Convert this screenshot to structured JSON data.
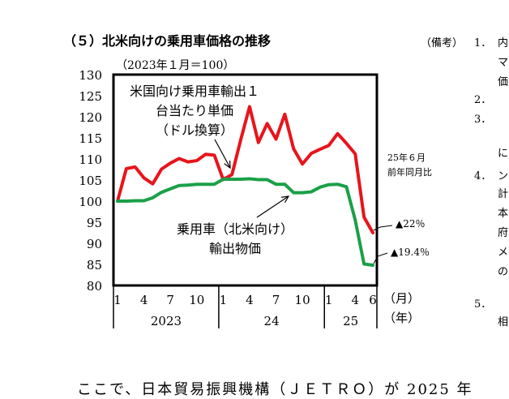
{
  "page": {
    "title": "（５）北米向けの乗用車価格の推移",
    "notes_heading": "（備考）",
    "notes": [
      {
        "num": "1．",
        "text": "内"
      },
      {
        "num": "",
        "text": "マ"
      },
      {
        "num": "",
        "text": "価"
      },
      {
        "num": "2．",
        "text": ""
      },
      {
        "num": "3．",
        "text": ""
      },
      {
        "num": "",
        "text": "に"
      },
      {
        "num": "4．",
        "text": "ン"
      },
      {
        "num": "",
        "text": "計"
      },
      {
        "num": "",
        "text": "本"
      },
      {
        "num": "",
        "text": "府"
      },
      {
        "num": "",
        "text": "メ"
      },
      {
        "num": "",
        "text": "の"
      },
      {
        "num": "5．",
        "text": ""
      },
      {
        "num": "",
        "text": "相"
      }
    ],
    "footer_text": "ここで、日本貿易振興機構（ＪＥＴＲＯ）が 2025 年"
  },
  "chart_data": {
    "type": "line",
    "unit_note": "（2023年１月＝100）",
    "x_tick_labels": [
      "1",
      "4",
      "7",
      "10",
      "1",
      "4",
      "7",
      "10",
      "1",
      "4",
      "6"
    ],
    "x_unit_month": "（月）",
    "x_unit_year": "（年）",
    "year_labels": [
      "2023",
      "24",
      "25"
    ],
    "ylim": [
      80,
      130
    ],
    "yticks": [
      80,
      85,
      90,
      95,
      100,
      105,
      110,
      115,
      120,
      125,
      130
    ],
    "series": [
      {
        "name": "米国向け乗用車輸出１台当たり単価（ドル換算）",
        "color": "#e8141c",
        "values": [
          100.0,
          107.7,
          108.1,
          105.5,
          104.1,
          107.6,
          109.0,
          110.1,
          109.3,
          109.6,
          111.1,
          110.9,
          105.1,
          106.3,
          114.6,
          122.4,
          113.9,
          118.4,
          114.7,
          120.6,
          112.4,
          108.8,
          111.3,
          112.3,
          113.2,
          116.0,
          113.7,
          111.2,
          96.2,
          92.5
        ]
      },
      {
        "name": "乗用車（北米向け）輸出物価",
        "color": "#1aa048",
        "values": [
          100.0,
          100.0,
          100.1,
          100.1,
          100.8,
          102.1,
          102.9,
          103.7,
          103.8,
          104.0,
          104.0,
          104.0,
          105.2,
          105.2,
          105.2,
          105.3,
          105.1,
          105.1,
          104.0,
          104.0,
          102.0,
          102.0,
          102.2,
          103.3,
          103.9,
          104.0,
          103.4,
          95.5,
          85.1,
          84.8
        ]
      }
    ],
    "annotations": [
      {
        "text": "米国向け乗用車輸出１",
        "series": 0
      },
      {
        "text": "台当たり単価",
        "series": 0
      },
      {
        "text": "（ドル換算）",
        "series": 0
      },
      {
        "text": "乗用車（北米向け）",
        "series": 1
      },
      {
        "text": "輸出物価",
        "series": 1
      },
      {
        "text": "25年６月",
        "series": -1
      },
      {
        "text": "前年同月比",
        "series": -1
      },
      {
        "text": "▲22％",
        "series": 0
      },
      {
        "text": "▲19.4％",
        "series": 1
      }
    ]
  }
}
